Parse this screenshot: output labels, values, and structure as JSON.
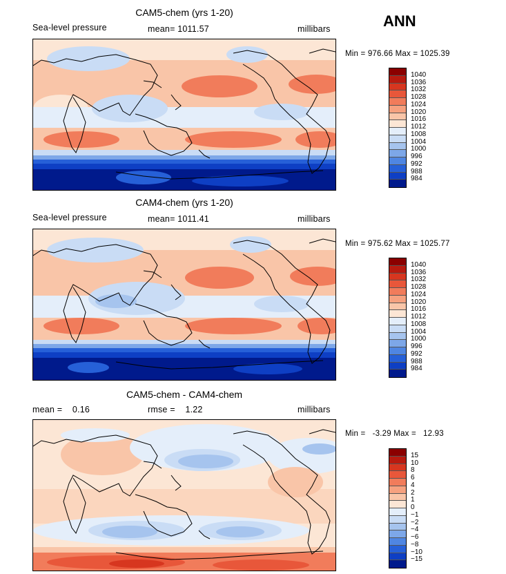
{
  "corner_label": "ANN",
  "panels": [
    {
      "title": "CAM5-chem (yrs 1-20)",
      "left_label": "Sea-level pressure",
      "mid_label": "mean= 1011.57",
      "right_label": "millibars",
      "minmax": "Min = 976.66 Max = 1025.39",
      "legend_levels": [
        "1040",
        "1036",
        "1032",
        "1028",
        "1024",
        "1020",
        "1016",
        "1012",
        "1008",
        "1004",
        "1000",
        "996",
        "992",
        "988",
        "984"
      ],
      "legend_colors": [
        "#8b0000",
        "#b81a0f",
        "#d7361f",
        "#e8573a",
        "#f17c5b",
        "#f6a17f",
        "#f9c5a8",
        "#fce6d5",
        "#e4eefa",
        "#c9dcf5",
        "#a6c4ee",
        "#7da7e8",
        "#4f86e2",
        "#2660d8",
        "#0e3fc4",
        "#001a8c"
      ]
    },
    {
      "title": "CAM4-chem (yrs 1-20)",
      "left_label": "Sea-level pressure",
      "mid_label": "mean= 1011.41",
      "right_label": "millibars",
      "minmax": "Min = 975.62 Max = 1025.77",
      "legend_levels": [
        "1040",
        "1036",
        "1032",
        "1028",
        "1024",
        "1020",
        "1016",
        "1012",
        "1008",
        "1004",
        "1000",
        "996",
        "992",
        "988",
        "984"
      ],
      "legend_colors": [
        "#8b0000",
        "#b81a0f",
        "#d7361f",
        "#e8573a",
        "#f17c5b",
        "#f6a17f",
        "#f9c5a8",
        "#fce6d5",
        "#e4eefa",
        "#c9dcf5",
        "#a6c4ee",
        "#7da7e8",
        "#4f86e2",
        "#2660d8",
        "#0e3fc4",
        "#001a8c"
      ]
    },
    {
      "title": "CAM5-chem - CAM4-chem",
      "left_label": "mean =    0.16",
      "mid_label": "rmse =    1.22",
      "right_label": "millibars",
      "minmax": "Min =   -3.29 Max =   12.93",
      "legend_levels": [
        "15",
        "10",
        "8",
        "6",
        "4",
        "2",
        "1",
        "0",
        "−1",
        "−2",
        "−4",
        "−6",
        "−8",
        "−10",
        "−15"
      ],
      "legend_colors": [
        "#8b0000",
        "#b81a0f",
        "#d7361f",
        "#e8573a",
        "#f17c5b",
        "#f6a17f",
        "#f9c5a8",
        "#fce6d5",
        "#e4eefa",
        "#c9dcf5",
        "#a6c4ee",
        "#7da7e8",
        "#4f86e2",
        "#2660d8",
        "#0e3fc4",
        "#001a8c"
      ]
    }
  ]
}
